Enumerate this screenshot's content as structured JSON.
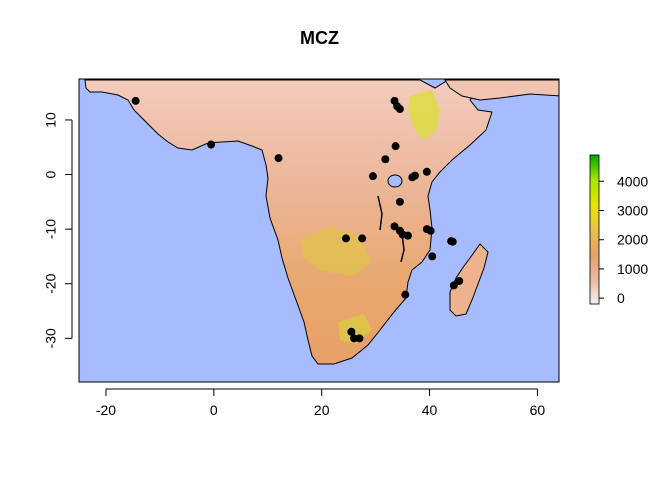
{
  "title": "MCZ",
  "map": {
    "ocean_color": "#a6bcff",
    "land_colors": [
      "#f2f2f2",
      "#ecb89a",
      "#e8a368",
      "#e3c74a",
      "#e6e600",
      "#a6e600",
      "#00a600"
    ],
    "xlim": [
      -25,
      64
    ],
    "ylim": [
      -38,
      17.5
    ],
    "x_ticks": [
      {
        "value": -20,
        "label": "-20"
      },
      {
        "value": 0,
        "label": "0"
      },
      {
        "value": 20,
        "label": "20"
      },
      {
        "value": 40,
        "label": "40"
      },
      {
        "value": 60,
        "label": "60"
      }
    ],
    "y_ticks": [
      {
        "value": 10,
        "label": "10"
      },
      {
        "value": 0,
        "label": "0"
      },
      {
        "value": -10,
        "label": "-10"
      },
      {
        "value": -20,
        "label": "-20"
      },
      {
        "value": -30,
        "label": "-30"
      }
    ],
    "points": [
      {
        "lon": -14.5,
        "lat": 13.5
      },
      {
        "lon": -0.5,
        "lat": 5.5
      },
      {
        "lon": 12.0,
        "lat": 3.0
      },
      {
        "lon": 33.5,
        "lat": 13.5
      },
      {
        "lon": 34.0,
        "lat": 12.5
      },
      {
        "lon": 34.5,
        "lat": 12.0
      },
      {
        "lon": 33.7,
        "lat": 5.2
      },
      {
        "lon": 31.8,
        "lat": 2.8
      },
      {
        "lon": 29.5,
        "lat": -0.3
      },
      {
        "lon": 36.8,
        "lat": -0.5
      },
      {
        "lon": 37.3,
        "lat": -0.2
      },
      {
        "lon": 39.5,
        "lat": 0.5
      },
      {
        "lon": 34.5,
        "lat": -5.0
      },
      {
        "lon": 33.5,
        "lat": -9.5
      },
      {
        "lon": 34.5,
        "lat": -10.3
      },
      {
        "lon": 35.0,
        "lat": -11.0
      },
      {
        "lon": 36.0,
        "lat": -11.2
      },
      {
        "lon": 39.5,
        "lat": -10.0
      },
      {
        "lon": 40.2,
        "lat": -10.3
      },
      {
        "lon": 44.0,
        "lat": -12.2
      },
      {
        "lon": 44.3,
        "lat": -12.3
      },
      {
        "lon": 27.5,
        "lat": -11.7
      },
      {
        "lon": 24.5,
        "lat": -11.7
      },
      {
        "lon": 40.5,
        "lat": -15.0
      },
      {
        "lon": 44.5,
        "lat": -20.3
      },
      {
        "lon": 45.5,
        "lat": -19.5
      },
      {
        "lon": 35.5,
        "lat": -22.0
      },
      {
        "lon": 25.5,
        "lat": -28.8
      },
      {
        "lon": 26.0,
        "lat": -30.0
      },
      {
        "lon": 27.0,
        "lat": -30.0
      }
    ]
  },
  "legend": {
    "gradient": [
      "#00a600",
      "#a6e600",
      "#e6e600",
      "#e8c34a",
      "#e8a06a",
      "#ecb8a0",
      "#f2f2f2"
    ],
    "min": -200,
    "max": 4900,
    "ticks": [
      {
        "value": 4000,
        "label": "4000"
      },
      {
        "value": 3000,
        "label": "3000"
      },
      {
        "value": 2000,
        "label": "2000"
      },
      {
        "value": 1000,
        "label": "1000"
      },
      {
        "value": 0,
        "label": "0"
      }
    ]
  }
}
